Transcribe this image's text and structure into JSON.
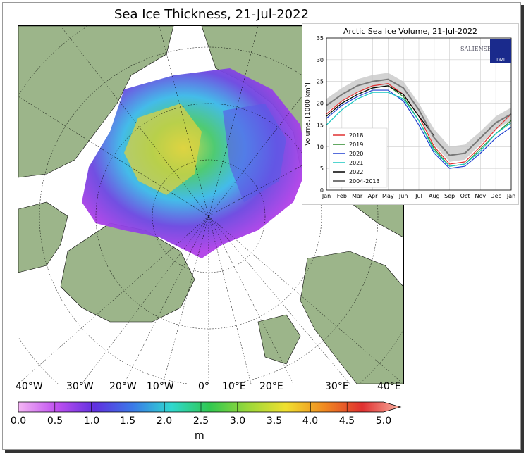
{
  "map": {
    "title": "Sea Ice Thickness, 21-Jul-2022",
    "lon_labels": [
      "40°W",
      "30°W",
      "20°W",
      "10°W",
      "0°",
      "10°E",
      "20°E",
      "30°E",
      "40°E"
    ],
    "colors": {
      "land": "#9cb58a",
      "ocean": "#ffffff",
      "coast": "#000000"
    }
  },
  "colorbar": {
    "ticks": [
      "0.0",
      "0.5",
      "1.0",
      "1.5",
      "2.0",
      "2.5",
      "3.0",
      "3.5",
      "4.0",
      "4.5",
      "5.0"
    ],
    "unit": "m",
    "min": 0.0,
    "max": 5.0
  },
  "inset": {
    "title": "Arctic Sea Ice Volume, 21-Jul-2022",
    "logo_text": "SALIENSEAS",
    "badge_text": "DMI",
    "chart_data": {
      "type": "line",
      "title": "Arctic Sea Ice Volume, 21-Jul-2022",
      "ylabel": "Volume, [1000 km³]",
      "xlabel": "",
      "ylim": [
        0,
        35
      ],
      "yticks": [
        "0",
        "5",
        "10",
        "15",
        "20",
        "25",
        "30",
        "35"
      ],
      "categories": [
        "Jan",
        "Feb",
        "Mar",
        "Apr",
        "May",
        "Jun",
        "Jul",
        "Aug",
        "Sep",
        "Oct",
        "Nov",
        "Dec",
        "Jan"
      ],
      "legend_position": "bottom-left",
      "grid": true,
      "series": [
        {
          "name": "2018",
          "color": "#e03030",
          "values": [
            17.5,
            20.5,
            22.5,
            24,
            24.5,
            22,
            17,
            10,
            6,
            6.5,
            10,
            14,
            17.5
          ]
        },
        {
          "name": "2019",
          "color": "#2e8b2e",
          "values": [
            17,
            20,
            22,
            23.5,
            24,
            21.5,
            16,
            9.5,
            5.5,
            6,
            9.5,
            13,
            16
          ]
        },
        {
          "name": "2020",
          "color": "#1f3fd1",
          "values": [
            16.5,
            19.5,
            21.5,
            23,
            23,
            20.5,
            15,
            8.5,
            5,
            5.5,
            8.5,
            12,
            14.5
          ]
        },
        {
          "name": "2021",
          "color": "#18c7c0",
          "values": [
            15,
            18.5,
            21,
            22.5,
            22.5,
            21,
            16,
            9,
            5.5,
            6,
            9,
            13,
            15.5
          ]
        },
        {
          "name": "2022",
          "color": "#000000",
          "values": [
            17,
            20,
            22,
            23.5,
            24,
            22,
            17,
            12.5,
            null,
            null,
            null,
            null,
            null
          ]
        },
        {
          "name": "2004-2013",
          "color": "#777777",
          "values": [
            19.5,
            22,
            24,
            25,
            25.5,
            23.5,
            18.5,
            12,
            8,
            8.5,
            12,
            15.5,
            17.5
          ]
        }
      ],
      "band": {
        "name": "2004-2013",
        "color": "#c8c8c8",
        "upper": [
          21,
          23.5,
          25.5,
          26.5,
          27,
          25,
          20,
          14,
          10,
          10.5,
          13.5,
          17,
          19
        ],
        "lower": [
          18,
          20.5,
          22.5,
          23.5,
          24,
          22,
          17,
          10.5,
          6.5,
          7,
          10.5,
          14,
          16
        ]
      }
    }
  }
}
